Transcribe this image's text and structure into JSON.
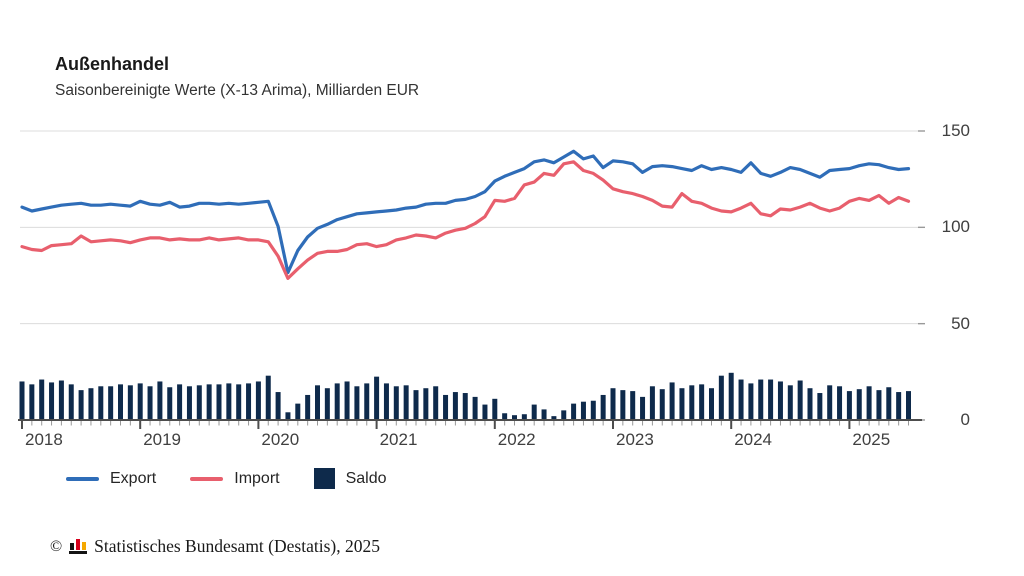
{
  "header": {
    "title": "Außenhandel",
    "subtitle": "Saisonbereinigte Werte (X-13 Arima), Milliarden EUR"
  },
  "chart_data": {
    "type": "line",
    "x_interval": "monthly",
    "x_start": "2018-01",
    "x_end": "2025-07",
    "year_labels": [
      "2018",
      "2019",
      "2020",
      "2021",
      "2022",
      "2023",
      "2024",
      "2025"
    ],
    "ylabel": "Milliarden EUR",
    "ylim": [
      0,
      150
    ],
    "yticks": [
      0,
      50,
      100,
      150
    ],
    "grid": true,
    "legend_position": "bottom",
    "series": [
      {
        "name": "Export",
        "type": "line",
        "color": "#2f6db8",
        "values": [
          110.5,
          108.5,
          109.5,
          110.5,
          111.5,
          112,
          112.5,
          111.5,
          111.5,
          112,
          111.5,
          111,
          113.5,
          112,
          111.5,
          113,
          110.5,
          111,
          112.5,
          112.5,
          112,
          112.5,
          112,
          112.5,
          113,
          113.5,
          100.5,
          76.5,
          88,
          95,
          99.5,
          101.5,
          104,
          105.5,
          107,
          107.5,
          108,
          108.5,
          109,
          110,
          110.5,
          112,
          112.5,
          112.5,
          114,
          114.5,
          116,
          118.5,
          124,
          126.5,
          128.5,
          130.5,
          134,
          135,
          133.5,
          136.5,
          139.5,
          135.5,
          137,
          131,
          134.5,
          134,
          133,
          128.5,
          131.5,
          132,
          131.5,
          130.5,
          129.5,
          132,
          130,
          131,
          130,
          128.5,
          133.5,
          128,
          126.5,
          128.5,
          131,
          130,
          128,
          126,
          129.5,
          130,
          130.5,
          132,
          133,
          132.5,
          131,
          130,
          130.5
        ]
      },
      {
        "name": "Import",
        "type": "line",
        "color": "#e85f6d",
        "values": [
          90,
          88.5,
          88,
          90.5,
          91,
          91.5,
          95.5,
          92.5,
          93,
          93.5,
          93,
          92,
          93.5,
          94.5,
          94.5,
          93.5,
          94,
          93.5,
          93.5,
          94.5,
          93.5,
          94,
          94.5,
          93.5,
          93.5,
          92.5,
          85,
          73.5,
          78.5,
          83,
          86.5,
          87.5,
          87.5,
          88.5,
          91,
          91.5,
          90,
          91,
          93.5,
          94.5,
          96,
          95.5,
          94.5,
          97,
          98.5,
          99.5,
          102,
          105.5,
          114,
          113.5,
          115,
          122,
          123.5,
          128,
          127,
          133,
          134,
          129.5,
          128,
          124.5,
          120,
          118.5,
          117.5,
          116,
          114,
          111,
          110.5,
          117.5,
          113.5,
          112.5,
          110,
          108.5,
          108,
          110,
          112.5,
          107,
          106,
          109.5,
          109,
          110.5,
          112.5,
          110,
          108.5,
          110,
          113.5,
          115,
          114,
          116.5,
          112.5,
          115.5,
          113.5
        ]
      },
      {
        "name": "Saldo",
        "type": "bar",
        "color": "#0e2a4b",
        "values": [
          20,
          18.5,
          21,
          19.5,
          20.5,
          18.5,
          15.5,
          16.5,
          17.5,
          17.5,
          18.5,
          18,
          19,
          17.5,
          20,
          17,
          18.5,
          17.5,
          18,
          18.5,
          18.5,
          19,
          18.5,
          19,
          20,
          23,
          14.5,
          4,
          8.5,
          13,
          18,
          16.5,
          19,
          20,
          17.5,
          19,
          22.5,
          19,
          17.5,
          18,
          15.5,
          16.5,
          17.5,
          13,
          14.5,
          14,
          12,
          8,
          11,
          3.5,
          2.5,
          3,
          8,
          5.5,
          2,
          5,
          8.5,
          9.5,
          10,
          13,
          16.5,
          15.5,
          15,
          12,
          17.5,
          16,
          19.5,
          16.5,
          18,
          18.5,
          16.5,
          23,
          24.5,
          21,
          19,
          21,
          21,
          20,
          18,
          20.5,
          16.5,
          14,
          18,
          17.5,
          15,
          16,
          17.5,
          15.5,
          17,
          14.5,
          15
        ]
      }
    ]
  },
  "legend": {
    "items": [
      {
        "label": "Export",
        "swatch": "line",
        "color": "#2f6db8"
      },
      {
        "label": "Import",
        "swatch": "line",
        "color": "#e85f6d"
      },
      {
        "label": "Saldo",
        "swatch": "square",
        "color": "#0e2a4b"
      }
    ]
  },
  "footer": {
    "copyright_symbol": "©",
    "source_text": "Statistisches Bundesamt (Destatis), 2025"
  },
  "colors": {
    "gridline": "#dcdcdc",
    "axis": "#4d4d4d",
    "month_tick": "#999999",
    "text": "#404040"
  }
}
